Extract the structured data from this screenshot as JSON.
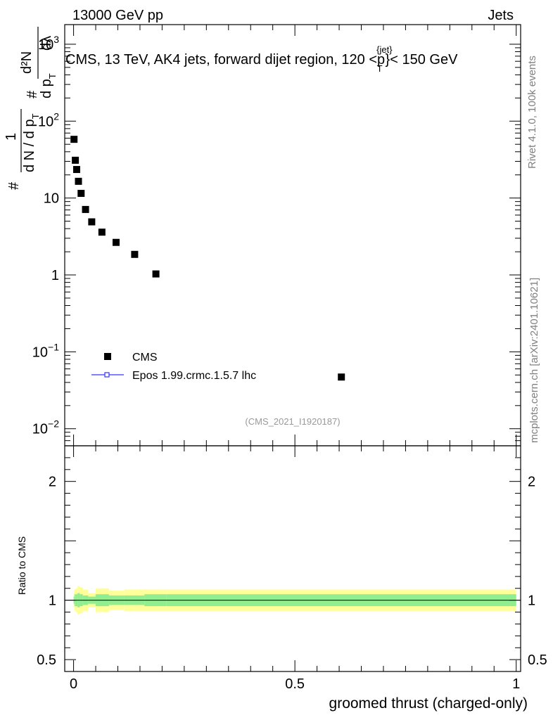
{
  "header": {
    "left": "13000 GeV pp",
    "right": "Jets"
  },
  "side_labels": {
    "rivet": "Rivet 4.1.0,  100k events",
    "mcplots": "mcplots.cern.ch [arXiv:2401.10621]"
  },
  "chart_data": {
    "type": "scatter",
    "title": "CMS, 13 TeV, AK4 jets, forward dijet region, 120 <p_T^{jet}< 150 GeV",
    "title_parts": {
      "main": "CMS, 13 TeV, AK4 jets, forward dijet region, 120 <p",
      "sup": "{jet}",
      "sub": "T",
      "tail": "}< 150 GeV"
    },
    "analysis_tag": "(CMS_2021_I1920187)",
    "xlabel": "groomed thrust (charged-only)",
    "ylabel": "1/(dN/dp_T) d²N/(dp_T dλ)",
    "ylabel_parts": {
      "hash1": "#",
      "one": "1",
      "dn": "d N / d p",
      "sub_t": "T",
      "hash2": "#",
      "num": "d²N",
      "dp": "d p",
      "sub_t2": "T",
      "dl": "dλ"
    },
    "xlim": [
      -0.02,
      1.01
    ],
    "ylim_log": [
      0.006,
      1800
    ],
    "yscale": "log",
    "x_ticks": [
      "0",
      "0.5",
      "1"
    ],
    "y_ticks": [
      {
        "base": "10",
        "exp": "3",
        "value": 1000
      },
      {
        "base": "10",
        "exp": "2",
        "value": 100
      },
      {
        "base": "10",
        "exp": "",
        "value": 10
      },
      {
        "base": "1",
        "exp": "",
        "value": 1
      },
      {
        "base": "10",
        "exp": "−1",
        "value": 0.1
      },
      {
        "base": "10",
        "exp": "−2",
        "value": 0.01
      }
    ],
    "series": [
      {
        "name": "CMS",
        "marker": "square",
        "color": "#000000",
        "x": [
          0.001,
          0.004,
          0.007,
          0.011,
          0.017,
          0.027,
          0.041,
          0.064,
          0.096,
          0.138,
          0.186,
          0.605
        ],
        "y": [
          58,
          31,
          23.5,
          16.5,
          11.5,
          7.1,
          4.9,
          3.6,
          2.65,
          1.85,
          1.03,
          0.047
        ]
      },
      {
        "name": "Epos 1.99.crmc.1.5.7 lhc",
        "marker": "open-square-line",
        "color": "#3333ff",
        "x": [],
        "y": []
      }
    ],
    "ratio": {
      "ylabel": "Ratio to CMS",
      "ylim": [
        0.4,
        2.3
      ],
      "y_ticks": [
        "0.5",
        "1",
        "2"
      ],
      "bands": {
        "inner_color": "#90ee90",
        "outer_color": "#ffff99",
        "bins": [
          {
            "x0": 0.0,
            "x1": 0.002,
            "inner": 0.03,
            "outer": 0.06
          },
          {
            "x0": 0.002,
            "x1": 0.005,
            "inner": 0.05,
            "outer": 0.09
          },
          {
            "x0": 0.005,
            "x1": 0.009,
            "inner": 0.05,
            "outer": 0.1
          },
          {
            "x0": 0.009,
            "x1": 0.014,
            "inner": 0.06,
            "outer": 0.12
          },
          {
            "x0": 0.014,
            "x1": 0.021,
            "inner": 0.05,
            "outer": 0.11
          },
          {
            "x0": 0.021,
            "x1": 0.033,
            "inner": 0.04,
            "outer": 0.09
          },
          {
            "x0": 0.033,
            "x1": 0.05,
            "inner": 0.03,
            "outer": 0.06
          },
          {
            "x0": 0.05,
            "x1": 0.08,
            "inner": 0.05,
            "outer": 0.1
          },
          {
            "x0": 0.08,
            "x1": 0.115,
            "inner": 0.04,
            "outer": 0.08
          },
          {
            "x0": 0.115,
            "x1": 0.16,
            "inner": 0.04,
            "outer": 0.09
          },
          {
            "x0": 0.16,
            "x1": 0.21,
            "inner": 0.05,
            "outer": 0.09
          },
          {
            "x0": 0.21,
            "x1": 1.0,
            "inner": 0.05,
            "outer": 0.09
          }
        ]
      }
    }
  }
}
